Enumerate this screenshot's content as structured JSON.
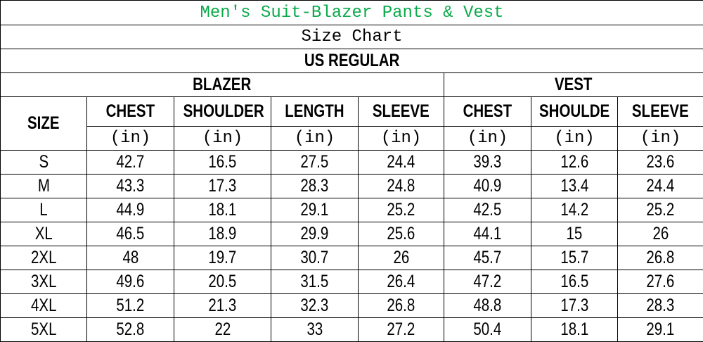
{
  "title": "Men's Suit-Blazer Pants & Vest",
  "subtitle": "Size Chart",
  "region": "US REGULAR",
  "colors": {
    "title": "#0aaa4a",
    "border": "#000000"
  },
  "groups": {
    "blazer": "BLAZER",
    "vest": "VEST"
  },
  "size_header": "SIZE",
  "columns": [
    "CHEST",
    "SHOULDER",
    "LENGTH",
    "SLEEVE",
    "CHEST",
    "SHOULDE",
    "SLEEVE"
  ],
  "unit": "(in)",
  "rows": [
    [
      "S",
      "42.7",
      "16.5",
      "27.5",
      "24.4",
      "39.3",
      "12.6",
      "23.6"
    ],
    [
      "M",
      "43.3",
      "17.3",
      "28.3",
      "24.8",
      "40.9",
      "13.4",
      "24.4"
    ],
    [
      "L",
      "44.9",
      "18.1",
      "29.1",
      "25.2",
      "42.5",
      "14.2",
      "25.2"
    ],
    [
      "XL",
      "46.5",
      "18.9",
      "29.9",
      "25.6",
      "44.1",
      "15",
      "26"
    ],
    [
      "2XL",
      "48",
      "19.7",
      "30.7",
      "26",
      "45.7",
      "15.7",
      "26.8"
    ],
    [
      "3XL",
      "49.6",
      "20.5",
      "31.5",
      "26.4",
      "47.2",
      "16.5",
      "27.6"
    ],
    [
      "4XL",
      "51.2",
      "21.3",
      "32.3",
      "26.8",
      "48.8",
      "17.3",
      "28.3"
    ],
    [
      "5XL",
      "52.8",
      "22",
      "33",
      "27.2",
      "50.4",
      "18.1",
      "29.1"
    ]
  ]
}
